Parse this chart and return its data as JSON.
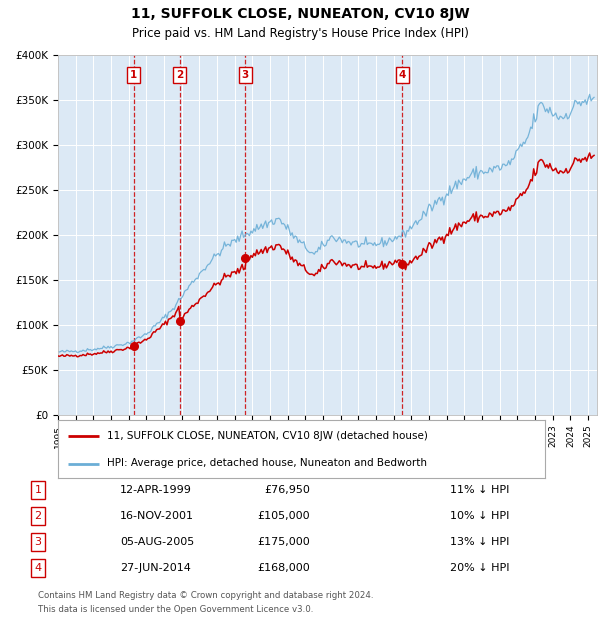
{
  "title": "11, SUFFOLK CLOSE, NUNEATON, CV10 8JW",
  "subtitle": "Price paid vs. HM Land Registry's House Price Index (HPI)",
  "ylim": [
    0,
    400000
  ],
  "ytick_vals": [
    0,
    50000,
    100000,
    150000,
    200000,
    250000,
    300000,
    350000,
    400000
  ],
  "ytick_labels": [
    "£0",
    "£50K",
    "£100K",
    "£150K",
    "£200K",
    "£250K",
    "£300K",
    "£350K",
    "£400K"
  ],
  "xlim_start": 1995.0,
  "xlim_end": 2025.5,
  "background_color": "#ffffff",
  "plot_bg_color": "#dce9f5",
  "grid_color": "#ffffff",
  "hpi_line_color": "#6baed6",
  "property_line_color": "#cc0000",
  "sale_marker_color": "#cc0000",
  "dashed_line_color": "#cc0000",
  "transactions": [
    {
      "label": "1",
      "date": "12-APR-1999",
      "year": 1999.28,
      "price": 76950
    },
    {
      "label": "2",
      "date": "16-NOV-2001",
      "year": 2001.88,
      "price": 105000
    },
    {
      "label": "3",
      "date": "05-AUG-2005",
      "year": 2005.59,
      "price": 175000
    },
    {
      "label": "4",
      "date": "27-JUN-2014",
      "year": 2014.49,
      "price": 168000
    }
  ],
  "legend_property": "11, SUFFOLK CLOSE, NUNEATON, CV10 8JW (detached house)",
  "legend_hpi": "HPI: Average price, detached house, Nuneaton and Bedworth",
  "footer1": "Contains HM Land Registry data © Crown copyright and database right 2024.",
  "footer2": "This data is licensed under the Open Government Licence v3.0.",
  "table_rows": [
    [
      "1",
      "12-APR-1999",
      "£76,950",
      "11% ↓ HPI"
    ],
    [
      "2",
      "16-NOV-2001",
      "£105,000",
      "10% ↓ HPI"
    ],
    [
      "3",
      "05-AUG-2005",
      "£175,000",
      "13% ↓ HPI"
    ],
    [
      "4",
      "27-JUN-2014",
      "£168,000",
      "20% ↓ HPI"
    ]
  ]
}
